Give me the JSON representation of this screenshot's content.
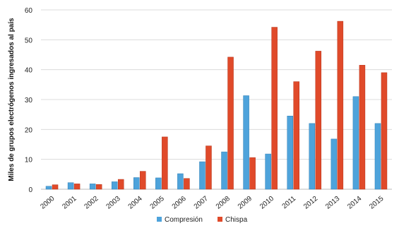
{
  "chart_data": {
    "type": "bar",
    "ylabel": "Miles de grupos electrógenos ingresados al país",
    "xlabel": "",
    "title": "",
    "ylim": [
      0,
      60
    ],
    "yticks": [
      0,
      10,
      20,
      30,
      40,
      50,
      60
    ],
    "grid": true,
    "legend_position": "bottom",
    "categories": [
      "2000",
      "2001",
      "2002",
      "2003",
      "2004",
      "2005",
      "2006",
      "2007",
      "2008",
      "2009",
      "2010",
      "2011",
      "2012",
      "2013",
      "2014",
      "2015"
    ],
    "series": [
      {
        "name": "Compresión",
        "color": "#4ea3db",
        "values": [
          1.0,
          2.2,
          1.8,
          2.5,
          3.9,
          3.8,
          5.2,
          9.2,
          12.5,
          31.3,
          11.8,
          24.5,
          22.0,
          16.8,
          31.0,
          22.0
        ]
      },
      {
        "name": "Chispa",
        "color": "#e04a2a",
        "values": [
          1.5,
          1.8,
          1.6,
          3.3,
          6.0,
          17.5,
          3.6,
          14.5,
          44.2,
          10.6,
          54.2,
          36.0,
          46.2,
          56.2,
          41.5,
          39.0
        ]
      }
    ]
  }
}
